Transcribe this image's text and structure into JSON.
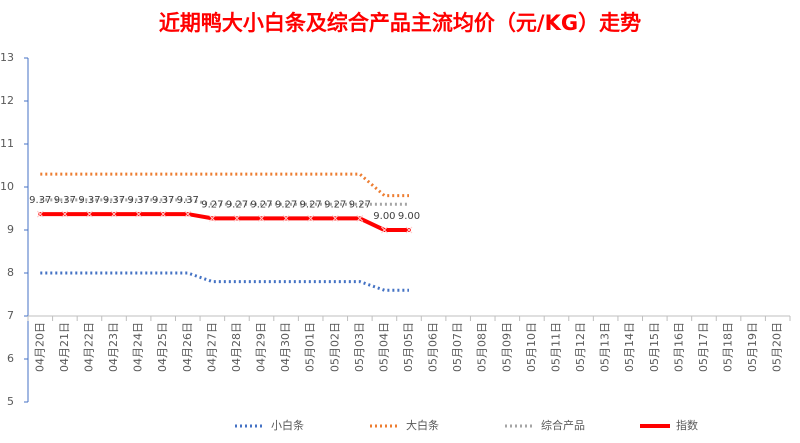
{
  "chart_data": {
    "type": "line",
    "title": "近期鸭大小白条及综合产品主流均价（元/KG）走势",
    "categories": [
      "04月20日",
      "04月21日",
      "04月22日",
      "04月23日",
      "04月24日",
      "04月25日",
      "04月26日",
      "04月27日",
      "04月28日",
      "04月29日",
      "04月30日",
      "05月01日",
      "05月02日",
      "05月03日",
      "05月04日",
      "05月05日",
      "05月06日",
      "05月07日",
      "05月08日",
      "05月09日",
      "05月10日",
      "05月11日",
      "05月12日",
      "05月13日",
      "05月14日",
      "05月15日",
      "05月16日",
      "05月17日",
      "05月18日",
      "05月19日",
      "05月20日"
    ],
    "series": [
      {
        "name": "小白条",
        "color": "#4472c4",
        "style": "dotted",
        "values": [
          8,
          8,
          8,
          8,
          8,
          8,
          8,
          7.8,
          7.8,
          7.8,
          7.8,
          7.8,
          7.8,
          7.8,
          7.6,
          7.6,
          null,
          null,
          null,
          null,
          null,
          null,
          null,
          null,
          null,
          null,
          null,
          null,
          null,
          null,
          null
        ]
      },
      {
        "name": "大白条",
        "color": "#ed7d31",
        "style": "dotted",
        "values": [
          10.3,
          10.3,
          10.3,
          10.3,
          10.3,
          10.3,
          10.3,
          10.3,
          10.3,
          10.3,
          10.3,
          10.3,
          10.3,
          10.3,
          9.8,
          9.8,
          null,
          null,
          null,
          null,
          null,
          null,
          null,
          null,
          null,
          null,
          null,
          null,
          null,
          null,
          null
        ]
      },
      {
        "name": "综合产品",
        "color": "#a5a5a5",
        "style": "dotted",
        "values": [
          9.7,
          9.7,
          9.7,
          9.7,
          9.7,
          9.7,
          9.7,
          9.6,
          9.6,
          9.6,
          9.6,
          9.6,
          9.6,
          9.6,
          9.6,
          9.6,
          null,
          null,
          null,
          null,
          null,
          null,
          null,
          null,
          null,
          null,
          null,
          null,
          null,
          null,
          null
        ]
      },
      {
        "name": "指数",
        "color": "#ff0000",
        "style": "solid",
        "values": [
          9.37,
          9.37,
          9.37,
          9.37,
          9.37,
          9.37,
          9.37,
          9.27,
          9.27,
          9.27,
          9.27,
          9.27,
          9.27,
          9.27,
          9,
          9,
          null,
          null,
          null,
          null,
          null,
          null,
          null,
          null,
          null,
          null,
          null,
          null,
          null,
          null,
          null
        ],
        "value_labels": [
          "9.37",
          "9.37",
          "9.37",
          "9.37",
          "9.37",
          "9.37",
          "9.37",
          "9.27",
          "9.27",
          "9.27",
          "9.27",
          "9.27",
          "9.27",
          "9.27",
          "9.00",
          "9.00",
          null,
          null,
          null,
          null,
          null,
          null,
          null,
          null,
          null,
          null,
          null,
          null,
          null,
          null,
          null
        ]
      }
    ],
    "ylim": [
      5,
      13
    ],
    "yticks": [
      5,
      6,
      7,
      8,
      9,
      10,
      11,
      12,
      13
    ],
    "xaxis_at": 7,
    "grid": false,
    "legend": "bottom"
  }
}
